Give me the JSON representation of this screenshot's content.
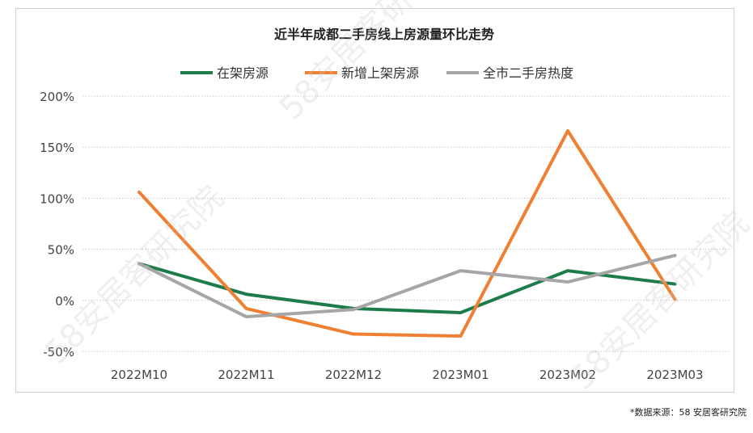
{
  "source_note": "*数据来源：58 安居客研究院",
  "watermark_text": "58安居客研究院",
  "chart_data": {
    "type": "line",
    "title": "近半年成都二手房线上房源量环比走势",
    "categories": [
      "2022M10",
      "2022M11",
      "2022M12",
      "2023M01",
      "2023M02",
      "2023M03"
    ],
    "ylim": [
      -50,
      200
    ],
    "yticks": [
      -50,
      0,
      50,
      100,
      150,
      200
    ],
    "ytick_labels": [
      "-50%",
      "0%",
      "50%",
      "100%",
      "150%",
      "200%"
    ],
    "grid": true,
    "legend_position": "top-center",
    "series": [
      {
        "name": "在架房源",
        "color": "#1e7c4b",
        "values": [
          36,
          6,
          -8,
          -12,
          29,
          16
        ]
      },
      {
        "name": "新增上架房源",
        "color": "#ef8033",
        "values": [
          106,
          -8,
          -33,
          -35,
          166,
          1
        ]
      },
      {
        "name": "全市二手房热度",
        "color": "#a6a6a6",
        "values": [
          36,
          -16,
          -9,
          29,
          18,
          44
        ]
      }
    ]
  }
}
